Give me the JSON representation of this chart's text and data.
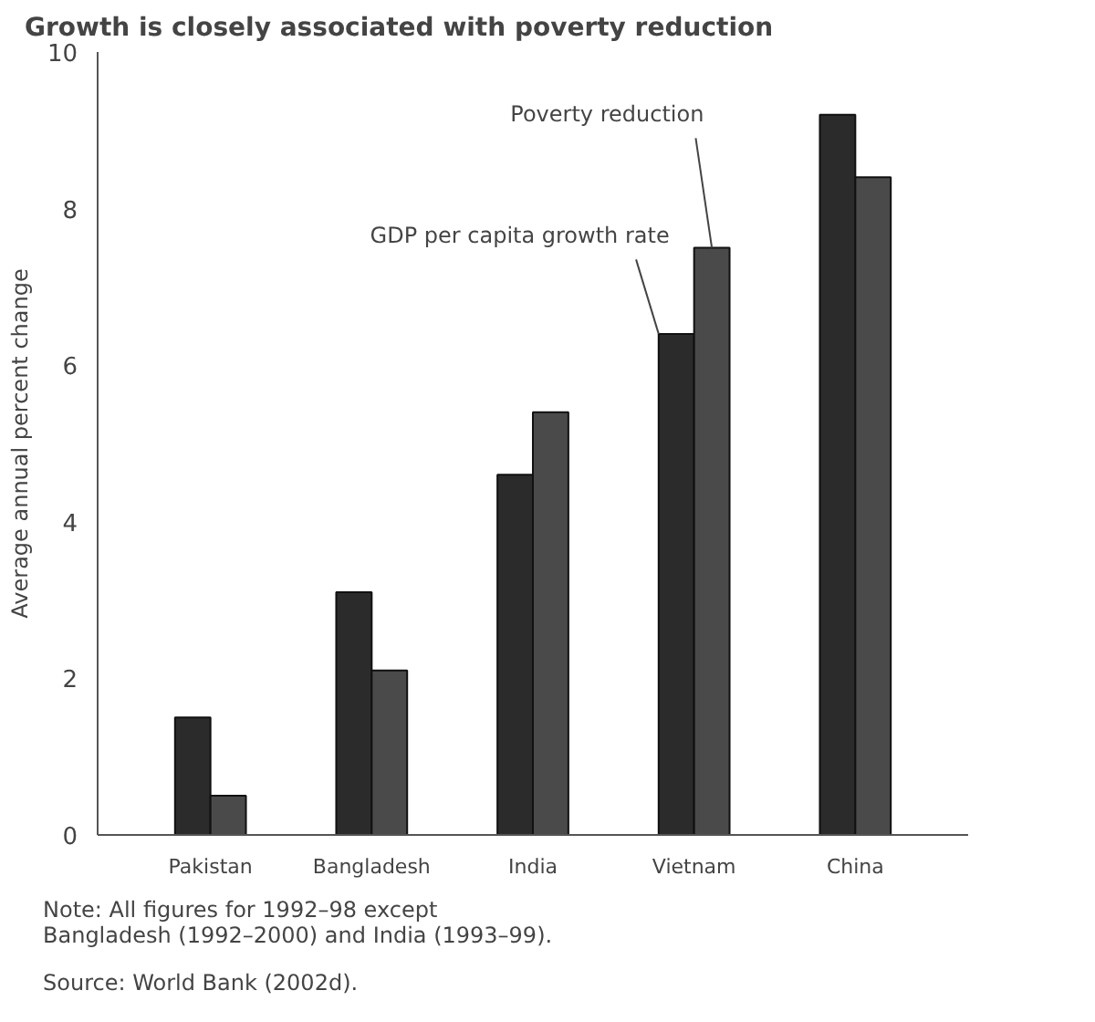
{
  "chart_data": {
    "type": "bar",
    "title": "Growth is closely associated with poverty reduction",
    "ylabel": "Average annual percent change",
    "categories": [
      "Pakistan",
      "Bangladesh",
      "India",
      "Vietnam",
      "China"
    ],
    "series": [
      {
        "name": "GDP per capita growth rate",
        "color": "#2b2b2b",
        "values": [
          1.5,
          3.1,
          4.6,
          6.4,
          9.2
        ]
      },
      {
        "name": "Poverty reduction",
        "color": "#4a4a4a",
        "values": [
          0.5,
          2.1,
          5.4,
          7.5,
          8.4
        ]
      }
    ],
    "ylim": [
      0,
      10
    ],
    "yticks": [
      0,
      2,
      4,
      6,
      8,
      10
    ],
    "grid": false,
    "legend": false,
    "annotations": [
      "Note: All figures for 1992–98 except\n          Bangladesh (1992–2000) and India (1993–99).",
      "Source: World Bank (2002d)."
    ]
  }
}
